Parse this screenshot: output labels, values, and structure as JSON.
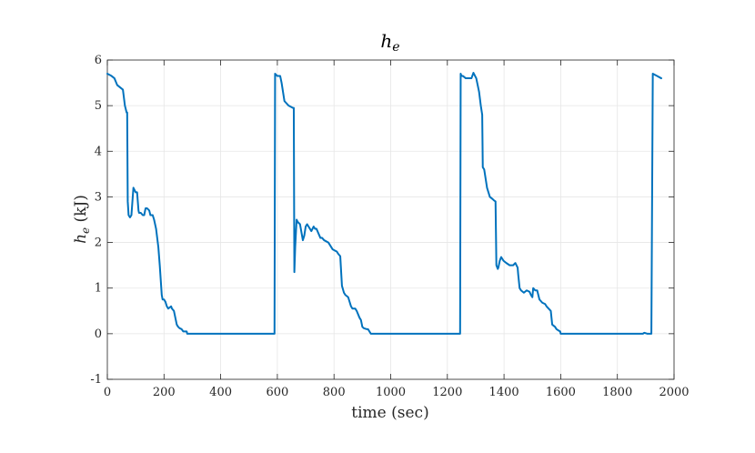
{
  "chart_data": {
    "type": "line",
    "title": {
      "main": "h",
      "sub": "e"
    },
    "xlabel": "time (sec)",
    "ylabel": {
      "main": "h",
      "sub": "e",
      "unit": " (kJ)"
    },
    "xlim": [
      0,
      2000
    ],
    "ylim": [
      -1,
      6
    ],
    "xticks": [
      0,
      200,
      400,
      600,
      800,
      1000,
      1200,
      1400,
      1600,
      1800,
      2000
    ],
    "yticks": [
      -1,
      0,
      1,
      2,
      3,
      4,
      5,
      6
    ],
    "grid": true,
    "line_color": "#0072bd",
    "series": [
      {
        "x": [
          0,
          15,
          25,
          35,
          45,
          55,
          62,
          68,
          70,
          72,
          75,
          80,
          85,
          92,
          100,
          105,
          110,
          112,
          118,
          125,
          130,
          135,
          140,
          148,
          152,
          160,
          165,
          172,
          180,
          185,
          192,
          195,
          200,
          205,
          210,
          215,
          225,
          228,
          235,
          240,
          245,
          250,
          255,
          262,
          268,
          272,
          280,
          282,
          287,
          295,
          400,
          500,
          560,
          588,
          590,
          592,
          600,
          610,
          615,
          625,
          640,
          655,
          658,
          660,
          663,
          665,
          668,
          672,
          680,
          690,
          695,
          700,
          705,
          710,
          720,
          728,
          733,
          738,
          745,
          752,
          758,
          765,
          780,
          795,
          810,
          815,
          822,
          828,
          835,
          840,
          850,
          860,
          865,
          875,
          880,
          890,
          895,
          900,
          905,
          915,
          920,
          930,
          935,
          940,
          945,
          960,
          1100,
          1200,
          1220,
          1225,
          1230,
          1245,
          1247,
          1250,
          1255,
          1265,
          1275,
          1285,
          1292,
          1302,
          1312,
          1318,
          1323,
          1325,
          1330,
          1340,
          1350,
          1360,
          1365,
          1370,
          1373,
          1378,
          1380,
          1385,
          1390,
          1398,
          1408,
          1420,
          1432,
          1440,
          1448,
          1450,
          1455,
          1460,
          1470,
          1480,
          1490,
          1495,
          1500,
          1503,
          1510,
          1517,
          1525,
          1535,
          1545,
          1550,
          1565,
          1570,
          1580,
          1585,
          1590,
          1598,
          1600,
          1605,
          1700,
          1800,
          1890,
          1895,
          1905,
          1915,
          1920,
          1925,
          1940,
          1955
        ],
        "values": [
          5.7,
          5.65,
          5.6,
          5.45,
          5.4,
          5.35,
          5.0,
          4.85,
          4.85,
          2.9,
          2.6,
          2.55,
          2.6,
          3.2,
          3.1,
          3.1,
          2.7,
          2.65,
          2.65,
          2.6,
          2.6,
          2.75,
          2.75,
          2.7,
          2.6,
          2.6,
          2.5,
          2.3,
          1.9,
          1.5,
          0.85,
          0.75,
          0.75,
          0.7,
          0.6,
          0.55,
          0.6,
          0.55,
          0.5,
          0.35,
          0.2,
          0.15,
          0.12,
          0.1,
          0.05,
          0.05,
          0.05,
          0.0,
          0.0,
          0.0,
          0.0,
          0.0,
          0.0,
          0.0,
          0.0,
          5.7,
          5.65,
          5.65,
          5.5,
          5.1,
          5.0,
          4.95,
          4.95,
          1.35,
          1.9,
          2.15,
          2.5,
          2.45,
          2.4,
          2.05,
          2.15,
          2.35,
          2.4,
          2.35,
          2.25,
          2.35,
          2.3,
          2.3,
          2.2,
          2.1,
          2.1,
          2.05,
          2.0,
          1.85,
          1.8,
          1.75,
          1.7,
          1.05,
          0.9,
          0.85,
          0.8,
          0.6,
          0.55,
          0.55,
          0.5,
          0.35,
          0.3,
          0.15,
          0.12,
          0.1,
          0.1,
          0.0,
          0.0,
          0.0,
          0.0,
          0.0,
          0.0,
          0.0,
          0.0,
          0.0,
          0.0,
          0.0,
          5.7,
          5.65,
          5.65,
          5.6,
          5.6,
          5.6,
          5.72,
          5.6,
          5.3,
          5.0,
          4.8,
          3.65,
          3.6,
          3.2,
          3.0,
          2.95,
          2.92,
          2.9,
          1.5,
          1.42,
          1.45,
          1.6,
          1.68,
          1.6,
          1.55,
          1.5,
          1.5,
          1.55,
          1.45,
          1.3,
          1.0,
          0.95,
          0.9,
          0.95,
          0.92,
          0.85,
          0.8,
          1.0,
          0.95,
          0.95,
          0.75,
          0.68,
          0.65,
          0.6,
          0.5,
          0.2,
          0.15,
          0.1,
          0.08,
          0.05,
          0.0,
          0.0,
          0.0,
          0.0,
          0.0,
          0.02,
          0.0,
          0.0,
          0.0,
          5.7,
          5.65,
          5.6
        ]
      }
    ]
  }
}
